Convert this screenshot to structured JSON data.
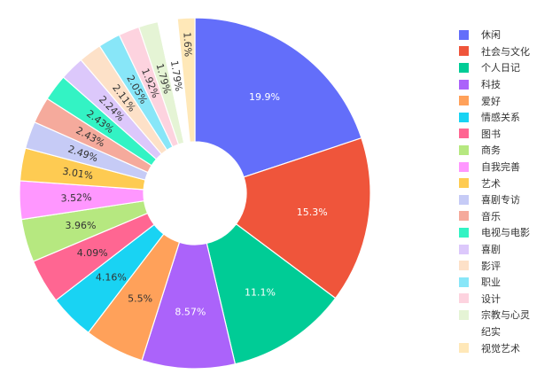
{
  "chart_data": {
    "type": "pie",
    "hole": true,
    "legend_position": "right",
    "slices": [
      {
        "label": "休闲",
        "value": 19.9,
        "text": "19.9%",
        "color": "#636efa"
      },
      {
        "label": "社会与文化",
        "value": 15.3,
        "text": "15.3%",
        "color": "#ef553b"
      },
      {
        "label": "个人日记",
        "value": 11.1,
        "text": "11.1%",
        "color": "#00cc96"
      },
      {
        "label": "科技",
        "value": 8.57,
        "text": "8.57%",
        "color": "#ab63fa"
      },
      {
        "label": "爱好",
        "value": 5.5,
        "text": "5.5%",
        "color": "#ffa15a"
      },
      {
        "label": "情感关系",
        "value": 4.16,
        "text": "4.16%",
        "color": "#19d3f3"
      },
      {
        "label": "图书",
        "value": 4.09,
        "text": "4.09%",
        "color": "#ff6692"
      },
      {
        "label": "商务",
        "value": 3.96,
        "text": "3.96%",
        "color": "#b6e880"
      },
      {
        "label": "自我完善",
        "value": 3.52,
        "text": "3.52%",
        "color": "#ff97ff"
      },
      {
        "label": "艺术",
        "value": 3.01,
        "text": "3.01%",
        "color": "#fecb52"
      },
      {
        "label": "喜剧专访",
        "value": 2.49,
        "text": "2.49%",
        "color": "#c6cbf6"
      },
      {
        "label": "音乐",
        "value": 2.43,
        "text": "2.43%",
        "color": "#f5aa9c"
      },
      {
        "label": "电视与电影",
        "value": 2.43,
        "text": "2.43%",
        "color": "#33f3c4"
      },
      {
        "label": "喜剧",
        "value": 2.24,
        "text": "2.24%",
        "color": "#dcc8fb"
      },
      {
        "label": "影评",
        "value": 2.11,
        "text": "2.11%",
        "color": "#fde1c8"
      },
      {
        "label": "职业",
        "value": 2.05,
        "text": "2.05%",
        "color": "#88e6f8"
      },
      {
        "label": "设计",
        "value": 1.92,
        "text": "1.92%",
        "color": "#fdd3df"
      },
      {
        "label": "宗教与心灵",
        "value": 1.79,
        "text": "1.79%",
        "color": "#e5f4d5"
      },
      {
        "label": "纪实",
        "value": 1.79,
        "text": "1.79%",
        "color": "#ffffff"
      },
      {
        "label": "视觉艺术",
        "value": 1.6,
        "text": "1.6%",
        "color": "#ffe8b8"
      }
    ]
  }
}
